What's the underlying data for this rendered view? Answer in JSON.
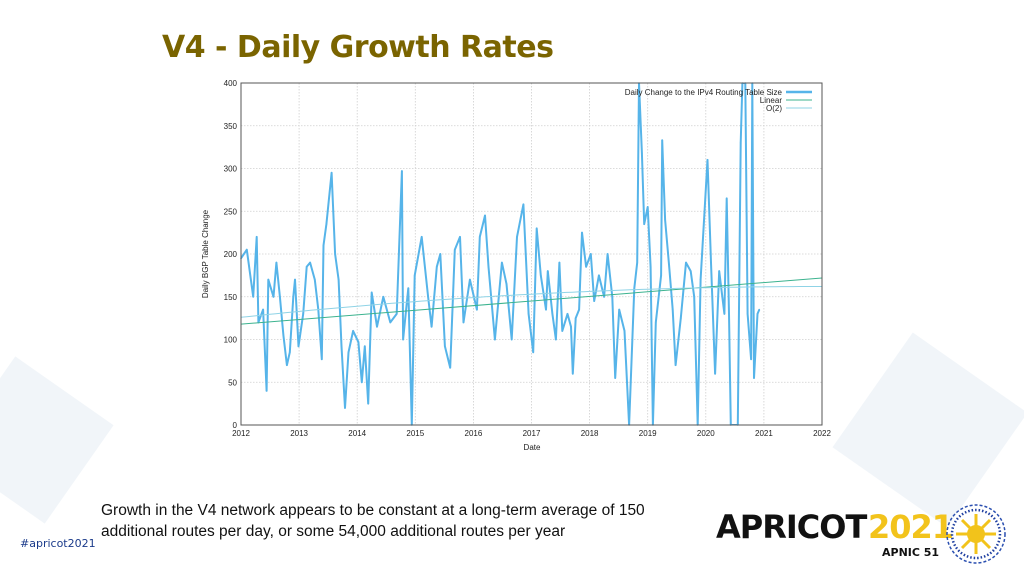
{
  "slide": {
    "title": "V4 - Daily Growth Rates",
    "caption_line1": "Growth in the V4 network appears to be constant at a long-term average of 150",
    "caption_line2": "additional routes per day, or some 54,000 additional routes per year",
    "hashtag": "#apricot2021",
    "logo": {
      "name": "APRICOT",
      "year": "2021",
      "sub": "APNIC 51",
      "year_color": "#f2c31b"
    },
    "title_color": "#7a6400"
  },
  "chart_data": {
    "type": "line",
    "title": "",
    "xlabel": "Date",
    "ylabel": "Daily BGP Table Change",
    "xlim": [
      2012,
      2022
    ],
    "ylim": [
      0,
      400
    ],
    "xticks": [
      "2012",
      "2013",
      "2014",
      "2015",
      "2016",
      "2017",
      "2018",
      "2019",
      "2020",
      "2021",
      "2022"
    ],
    "yticks": [
      "0",
      "50",
      "100",
      "150",
      "200",
      "250",
      "300",
      "350",
      "400"
    ],
    "grid": true,
    "legend_position": "top-right",
    "series": [
      {
        "name": "Daily Change to the IPv4 Routing Table Size",
        "color": "#56b4e9",
        "x": [
          2012.0,
          2012.1,
          2012.21,
          2012.27,
          2012.3,
          2012.38,
          2012.44,
          2012.47,
          2012.56,
          2012.61,
          2012.67,
          2012.73,
          2012.79,
          2012.84,
          2012.9,
          2012.93,
          2012.99,
          2013.07,
          2013.13,
          2013.19,
          2013.27,
          2013.33,
          2013.39,
          2013.42,
          2013.47,
          2013.56,
          2013.62,
          2013.68,
          2013.73,
          2013.79,
          2013.85,
          2013.93,
          2014.02,
          2014.08,
          2014.13,
          2014.19,
          2014.25,
          2014.34,
          2014.45,
          2014.57,
          2014.68,
          2014.77,
          2014.79,
          2014.88,
          2014.94,
          2014.99,
          2015.11,
          2015.22,
          2015.28,
          2015.37,
          2015.43,
          2015.51,
          2015.6,
          2015.68,
          2015.77,
          2015.83,
          2015.94,
          2016.06,
          2016.11,
          2016.2,
          2016.26,
          2016.37,
          2016.49,
          2016.57,
          2016.66,
          2016.75,
          2016.86,
          2016.95,
          2017.03,
          2017.09,
          2017.16,
          2017.25,
          2017.28,
          2017.36,
          2017.42,
          2017.48,
          2017.53,
          2017.62,
          2017.68,
          2017.71,
          2017.76,
          2017.82,
          2017.87,
          2017.94,
          2018.02,
          2018.08,
          2018.16,
          2018.25,
          2018.31,
          2018.39,
          2018.44,
          2018.51,
          2018.6,
          2018.68,
          2018.77,
          2018.82,
          2018.85,
          2018.9,
          2018.94,
          2019.0,
          2019.05,
          2019.09,
          2019.14,
          2019.23,
          2019.25,
          2019.3,
          2019.37,
          2019.43,
          2019.48,
          2019.57,
          2019.66,
          2019.74,
          2019.8,
          2019.86,
          2019.91,
          2020.03,
          2020.09,
          2020.16,
          2020.23,
          2020.32,
          2020.36,
          2020.4,
          2020.43,
          2020.55,
          2020.6,
          2020.63,
          2020.68,
          2020.72,
          2020.78,
          2020.8,
          2020.83,
          2020.89,
          2020.92
        ],
        "y": [
          195,
          205,
          150,
          220,
          120,
          135,
          40,
          170,
          150,
          190,
          150,
          105,
          70,
          85,
          150,
          170,
          92,
          130,
          185,
          190,
          170,
          135,
          77,
          210,
          235,
          295,
          200,
          170,
          92,
          20,
          85,
          110,
          97,
          50,
          92,
          25,
          155,
          115,
          150,
          120,
          130,
          297,
          100,
          160,
          0,
          175,
          220,
          150,
          115,
          185,
          200,
          92,
          67,
          205,
          220,
          120,
          170,
          135,
          220,
          245,
          185,
          100,
          190,
          165,
          100,
          220,
          258,
          130,
          85,
          230,
          175,
          135,
          180,
          130,
          100,
          190,
          110,
          130,
          115,
          60,
          125,
          135,
          225,
          185,
          200,
          145,
          175,
          150,
          200,
          150,
          55,
          135,
          110,
          0,
          160,
          190,
          400,
          318,
          235,
          255,
          185,
          0,
          120,
          175,
          333,
          240,
          185,
          135,
          70,
          125,
          190,
          180,
          150,
          0,
          170,
          310,
          190,
          60,
          180,
          130,
          265,
          130,
          0,
          0,
          330,
          400,
          400,
          130,
          77,
          400,
          55,
          130,
          135
        ]
      },
      {
        "name": "Linear",
        "color": "#3cb38f",
        "fit": "linear",
        "x": [
          2012,
          2022
        ],
        "y": [
          118,
          172
        ]
      },
      {
        "name": "O(2)",
        "color": "#8fd3e6",
        "fit": "quadratic",
        "x": [
          2012,
          2017,
          2022
        ],
        "y": [
          126,
          153,
          162
        ]
      }
    ]
  }
}
